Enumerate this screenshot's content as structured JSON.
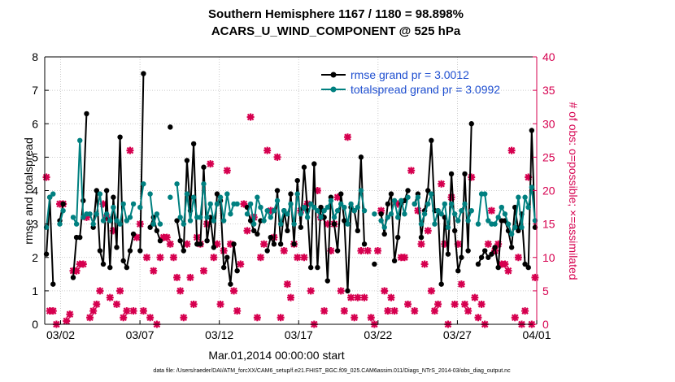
{
  "chart_data": {
    "type": "line",
    "title_line1": "Southern Hemisphere 1167 / 1180 = 98.898%",
    "title_line2": "ACARS_U_WIND_COMPONENT @ 525 hPa",
    "xlabel": "Mar.01,2014 00:00:00 start",
    "ylabel_left": "rmse and totalspread",
    "ylabel_right": "# of obs: o=possible; ×=assimilated",
    "footnote": "data file: /Users/raeder/DAI/ATM_forcXX/CAM6_setup/f.e21.FHIST_BGC.f09_025.CAM6assim.011/Diags_NTrS_2014-03/obs_diag_output.nc",
    "xlim": [
      0.5,
      31.5
    ],
    "ylim_left": [
      0,
      8
    ],
    "ylim_right": [
      0,
      40
    ],
    "x_ticks": [
      {
        "x": 1.5,
        "label": "03/02"
      },
      {
        "x": 6.5,
        "label": "03/07"
      },
      {
        "x": 11.5,
        "label": "03/12"
      },
      {
        "x": 16.5,
        "label": "03/17"
      },
      {
        "x": 21.5,
        "label": "03/22"
      },
      {
        "x": 26.5,
        "label": "03/27"
      },
      {
        "x": 31.5,
        "label": "04/01"
      }
    ],
    "y_ticks_left": [
      "0",
      "1",
      "2",
      "3",
      "4",
      "5",
      "6",
      "7",
      "8"
    ],
    "y_ticks_right": [
      "0",
      "5",
      "10",
      "15",
      "20",
      "25",
      "30",
      "35",
      "40"
    ],
    "colors": {
      "rmse": "#000000",
      "spread": "#008080",
      "obs": "#d6004f",
      "axis": "#000000"
    },
    "series": [
      {
        "name": "rmse grand pr = 3.0012",
        "values": [
          2.1,
          3.8,
          1.2,
          null,
          3.1,
          3.6,
          null,
          null,
          1.4,
          2.6,
          2.6,
          3.7,
          6.3,
          null,
          2.9,
          4.0,
          2.2,
          1.8,
          4.0,
          1.7,
          3.8,
          2.3,
          5.6,
          1.9,
          1.7,
          2.2,
          2.7,
          null,
          2.2,
          7.5,
          null,
          2.9,
          3.2,
          2.8,
          2.5,
          null,
          null,
          5.9,
          null,
          3.1,
          2.5,
          2.2,
          4.9,
          3.4,
          5.4,
          2.4,
          2.4,
          4.7,
          2.5,
          3.2,
          2.3,
          3.9,
          3.7,
          1.7,
          2.0,
          1.2,
          2.4,
          1.6,
          null,
          null,
          3.5,
          3.1,
          2.8,
          2.7,
          3.1,
          null,
          2.2,
          2.6,
          2.4,
          4.0,
          2.4,
          3.4,
          2.8,
          3.9,
          2.4,
          4.3,
          2.9,
          4.7,
          3.4,
          1.7,
          4.8,
          1.7,
          3.5,
          3.2,
          1.3,
          3.8,
          3.0,
          2.2,
          3.9,
          3.1,
          1.0,
          3.5,
          3.4,
          2.8,
          5.0,
          2.4,
          null,
          null,
          1.8,
          null,
          3.3,
          2.7,
          3.6,
          3.9,
          1.9,
          2.6,
          3.6,
          3.7,
          4.0,
          null,
          3.6,
          3.9,
          2.6,
          3.4,
          4.0,
          5.5,
          3.4,
          3.4,
          1.2,
          3.2,
          2.1,
          4.5,
          2.8,
          1.6,
          2.0,
          4.5,
          2.2,
          6.0,
          null,
          1.8,
          2.0,
          2.2,
          2.0,
          2.1,
          2.3,
          1.7,
          3.1,
          3.1,
          2.8,
          2.3,
          3.5,
          2.8,
          3.3,
          1.8,
          1.7,
          5.8,
          2.9
        ]
      },
      {
        "name": "totalspread grand pr = 3.0992",
        "values": [
          2.9,
          3.8,
          3.9,
          null,
          3.0,
          3.4,
          null,
          null,
          3.2,
          3.0,
          5.5,
          3.2,
          3.3,
          3.3,
          3.0,
          3.3,
          3.9,
          3.1,
          3.3,
          3.1,
          3.5,
          3.1,
          3.0,
          3.6,
          3.1,
          3.2,
          3.6,
          null,
          3.5,
          4.2,
          null,
          3.9,
          3.0,
          3.3,
          3.0,
          null,
          null,
          3.8,
          null,
          4.2,
          3.2,
          3.0,
          3.9,
          3.1,
          3.8,
          3.2,
          3.2,
          4.2,
          3.2,
          3.6,
          3.1,
          3.6,
          3.8,
          3.1,
          3.9,
          3.3,
          3.6,
          3.6,
          null,
          null,
          3.3,
          3.6,
          3.0,
          3.8,
          3.5,
          3.1,
          3.4,
          3.2,
          3.4,
          3.7,
          3.0,
          3.4,
          3.3,
          3.6,
          3.0,
          3.9,
          3.3,
          3.5,
          3.2,
          3.6,
          3.5,
          3.4,
          3.2,
          3.4,
          3.5,
          3.7,
          3.2,
          3.4,
          3.6,
          3.5,
          3.0,
          3.6,
          3.4,
          3.5,
          4.0,
          3.4,
          null,
          null,
          3.3,
          null,
          3.1,
          2.9,
          3.2,
          3.3,
          3.7,
          3.2,
          3.7,
          3.3,
          3.8,
          null,
          3.6,
          3.8,
          3.0,
          3.3,
          3.6,
          3.9,
          3.0,
          3.4,
          3.3,
          3.6,
          2.9,
          3.6,
          3.3,
          3.1,
          3.4,
          3.6,
          3.1,
          3.4,
          null,
          3.0,
          3.9,
          3.9,
          3.1,
          3.0,
          3.0,
          3.2,
          3.5,
          3.3,
          3.0,
          2.7,
          2.9,
          3.8,
          2.9,
          3.8,
          3.5,
          4.1,
          3.1
        ]
      }
    ],
    "obs_possible": [
      22.0,
      2.0,
      2.0,
      0.0,
      18.0,
      18.0,
      0.5,
      1.5,
      8.0,
      8.0,
      9.0,
      9.0,
      16.0,
      1.0,
      2.0,
      3.0,
      5.0,
      18.0,
      16.0,
      4.0,
      14.0,
      3.0,
      5.0,
      1.0,
      2.0,
      26.0,
      2.0,
      13.0,
      15.0,
      2.0,
      10.0,
      1.0,
      8.0,
      0.0,
      10.0,
      13.0,
      13.0,
      12.0,
      10.0,
      7.0,
      5.0,
      1.0,
      12.0,
      7.0,
      3.0,
      13.0,
      12.0,
      8.0,
      15.0,
      24.0,
      10.0,
      12.0,
      3.0,
      11.0,
      23.0,
      12.0,
      5.0,
      2.0,
      9.0,
      18.0,
      14.0,
      31.0,
      16.0,
      1.0,
      10.0,
      12.0,
      26.0,
      17.0,
      13.0,
      25.0,
      1.0,
      11.0,
      6.0,
      4.0,
      12.0,
      10.0,
      17.0,
      10.0,
      18.0,
      5.0,
      0.0,
      20.0,
      16.0,
      2.0,
      15.0,
      11.0,
      15.0,
      19.0,
      5.0,
      2.0,
      28.0,
      4.0,
      1.0,
      4.0,
      11.0,
      4.0,
      11.0,
      1.0,
      0.0,
      11.0,
      17.0,
      5.0,
      2.0,
      4.0,
      2.0,
      18.0,
      10.0,
      10.0,
      3.0,
      23.0,
      2.0,
      17.0,
      12.0,
      9.0,
      14.0,
      5.0,
      2.0,
      3.0,
      21.0,
      12.0,
      0.0,
      19.0,
      3.0,
      12.0,
      6.0,
      3.0,
      2.0,
      22.0,
      4.0,
      1.0,
      3.0,
      0.0,
      12.0,
      17.0,
      11.0,
      12.0,
      9.0,
      9.0,
      8.0,
      26.0,
      1.0,
      10.0,
      0.0,
      2.0,
      22.0,
      0.0,
      7.0
    ]
  }
}
